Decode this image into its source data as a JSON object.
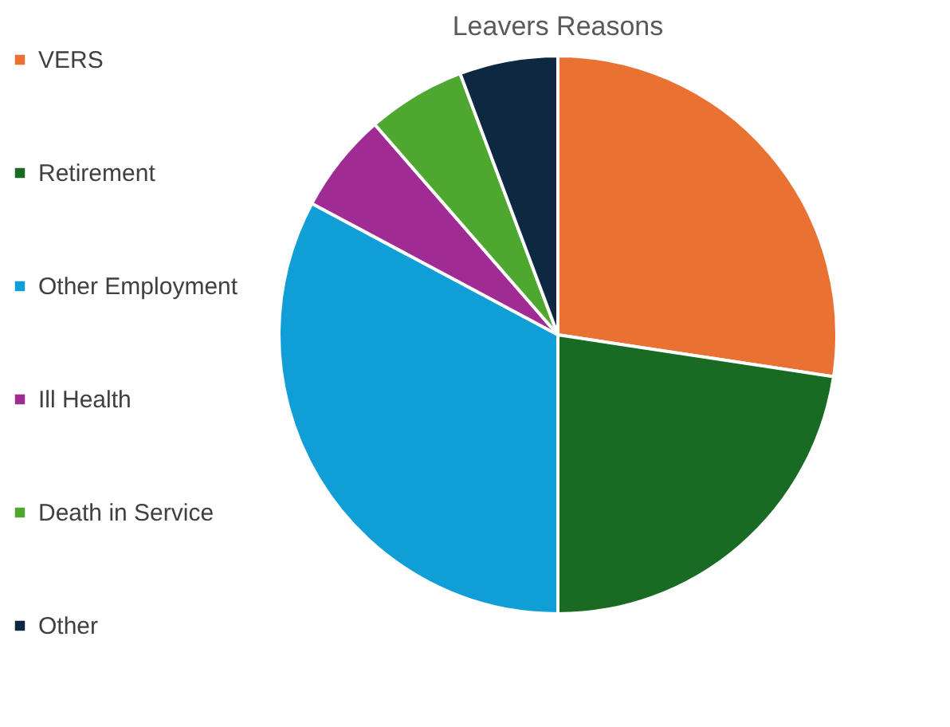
{
  "chart_data": {
    "type": "pie",
    "title": "Leavers Reasons",
    "categories": [
      "VERS",
      "Retirement",
      "Other Employment",
      "Ill Health",
      "Death in Service",
      "Other"
    ],
    "values": [
      27.4,
      22.6,
      32.8,
      5.8,
      5.7,
      5.7
    ],
    "colors": [
      "#e97132",
      "#196b24",
      "#0f9ed5",
      "#a02b93",
      "#4ea72e",
      "#0e2841"
    ],
    "legend": "left"
  }
}
